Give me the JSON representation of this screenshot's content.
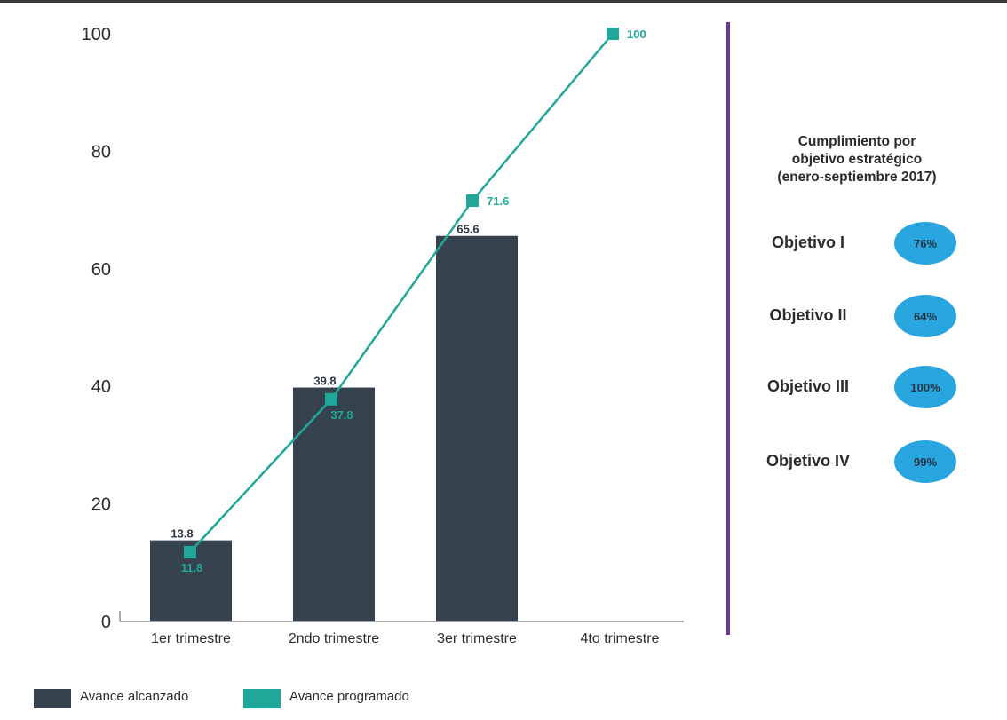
{
  "chart_data": {
    "type": "bar",
    "categories": [
      "1er trimestre",
      "2ndo trimestre",
      "3er trimestre",
      "4to trimestre"
    ],
    "series": [
      {
        "name": "Avance alcanzado",
        "kind": "bar",
        "values": [
          13.8,
          39.8,
          65.6,
          null
        ],
        "labels": [
          "13.8",
          "39.8",
          "65.6",
          ""
        ]
      },
      {
        "name": "Avance programado",
        "kind": "line",
        "values": [
          11.8,
          37.8,
          71.6,
          100
        ],
        "labels": [
          "11.8",
          "37.8",
          "71.6",
          "100"
        ]
      }
    ],
    "yticks": [
      "0",
      "20",
      "40",
      "60",
      "80",
      "100"
    ],
    "ylim": [
      0,
      100
    ],
    "colors": {
      "bar": "#36434f",
      "line": "#1fa89a"
    },
    "legend": "bottom-left",
    "grid": false
  },
  "panel": {
    "title_lines": [
      "Cumplimiento por",
      "objetivo estratégico",
      "(enero-septiembre 2017)"
    ],
    "objectives": [
      {
        "label": "Objetivo I",
        "value": "76%"
      },
      {
        "label": "Objetivo II",
        "value": "64%"
      },
      {
        "label": "Objetivo III",
        "value": "100%"
      },
      {
        "label": "Objetivo IV",
        "value": "99%"
      }
    ],
    "badge_color": "#29a6e0",
    "divider_color": "#6a3a8f"
  },
  "legend": {
    "items": [
      {
        "label": "Avance alcanzado",
        "color": "#36434f"
      },
      {
        "label": "Avance programado",
        "color": "#1fa89a"
      }
    ]
  }
}
